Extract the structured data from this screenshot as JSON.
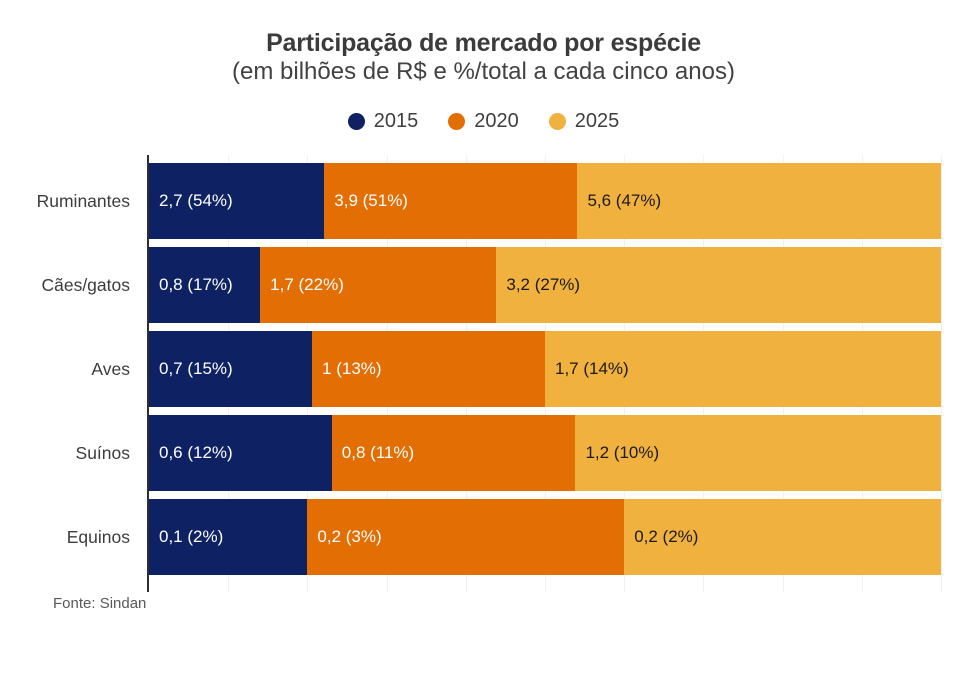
{
  "header": {
    "title": "Participação de mercado por espécie",
    "subtitle": "(em bilhões de R$ e %/total a cada cinco anos)"
  },
  "source": "Fonte: Sindan",
  "colors": {
    "series_2015": "#0e2163",
    "series_2020": "#e26e04",
    "series_2025": "#f1b13e",
    "axis_line": "#2e2e2e",
    "title_text": "#3b3b3b",
    "label_text": "#3d3d3d"
  },
  "chart_data": {
    "type": "bar",
    "orientation": "horizontal",
    "stacked": true,
    "row_normalized": true,
    "title": "Participação de mercado por espécie",
    "subtitle": "(em bilhões de R$ e %/total a cada cinco anos)",
    "source": "Fonte: Sindan",
    "legend_position": "top-center",
    "grid": "faint-vertical",
    "categories": [
      "Ruminantes",
      "Cães/gatos",
      "Aves",
      "Suínos",
      "Equinos"
    ],
    "series": [
      {
        "name": "2015",
        "color": "#0e2163",
        "text_color": "#ffffff",
        "values": [
          2.7,
          0.8,
          0.7,
          0.6,
          0.1
        ],
        "labels": [
          "2,7 (54%)",
          "0,8 (17%)",
          "0,7 (15%)",
          "0,6 (12%)",
          "0,1 (2%)"
        ]
      },
      {
        "name": "2020",
        "color": "#e26e04",
        "text_color": "#ffffff",
        "values": [
          3.9,
          1.7,
          1.0,
          0.8,
          0.2
        ],
        "labels": [
          "3,9 (51%)",
          "1,7 (22%)",
          "1 (13%)",
          "0,8 (11%)",
          "0,2 (3%)"
        ]
      },
      {
        "name": "2025",
        "color": "#f1b13e",
        "text_color": "#1a1a1a",
        "values": [
          5.6,
          3.2,
          1.7,
          1.2,
          0.2
        ],
        "labels": [
          "5,6 (47%)",
          "3,2 (27%)",
          "1,7 (14%)",
          "1,2 (10%)",
          "0,2 (2%)"
        ]
      }
    ]
  }
}
